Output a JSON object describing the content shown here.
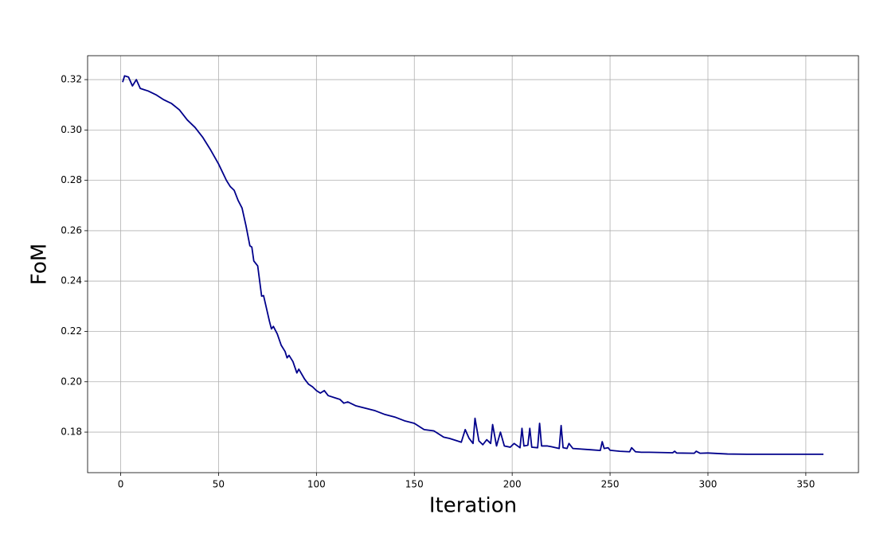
{
  "chart_data": {
    "type": "line",
    "xlabel": "Iteration",
    "ylabel": "FoM",
    "xlim": [
      -16.9,
      376.9
    ],
    "ylim": [
      0.1639,
      0.3295
    ],
    "xticks": [
      0,
      50,
      100,
      150,
      200,
      250,
      300,
      350
    ],
    "yticks": [
      0.18,
      {
        "value": 0.2,
        "label": "0.20"
      },
      0.22,
      0.24,
      0.26,
      0.28,
      {
        "value": 0.3,
        "label": "0.30"
      },
      0.32
    ],
    "grid": true,
    "x": [
      1,
      2,
      4,
      6,
      8,
      10,
      12,
      14,
      18,
      22,
      26,
      30,
      34,
      38,
      42,
      46,
      50,
      54,
      56,
      58,
      60,
      62,
      64,
      66,
      67,
      68,
      70,
      72,
      73,
      76,
      77,
      78,
      80,
      82,
      84,
      85,
      86,
      88,
      90,
      91,
      94,
      96,
      98,
      100,
      102,
      104,
      106,
      110,
      112,
      114,
      116,
      120,
      125,
      130,
      135,
      140,
      145,
      150,
      155,
      160,
      165,
      168,
      172,
      174,
      176,
      178,
      180,
      181,
      183,
      185,
      187,
      189,
      190,
      192,
      194,
      196,
      199,
      201,
      204,
      205,
      206,
      208,
      209,
      210,
      213,
      214,
      215,
      218,
      220,
      224,
      225,
      226,
      228,
      229,
      231,
      240,
      245,
      246,
      247,
      249,
      250,
      255,
      260,
      261,
      263,
      266,
      270,
      282,
      283,
      284,
      293,
      294,
      296,
      300,
      310,
      320,
      359
    ],
    "series": [
      {
        "name": "FoM",
        "color": "#00008b",
        "values": [
          0.319,
          0.3215,
          0.321,
          0.3175,
          0.32,
          0.3165,
          0.316,
          0.3155,
          0.314,
          0.312,
          0.3105,
          0.308,
          0.304,
          0.301,
          0.297,
          0.292,
          0.2865,
          0.28,
          0.2775,
          0.276,
          0.272,
          0.269,
          0.262,
          0.254,
          0.2535,
          0.248,
          0.246,
          0.234,
          0.2342,
          0.224,
          0.221,
          0.222,
          0.219,
          0.2145,
          0.212,
          0.2095,
          0.2105,
          0.208,
          0.2035,
          0.205,
          0.201,
          0.199,
          0.198,
          0.1965,
          0.1955,
          0.1965,
          0.1945,
          0.1935,
          0.193,
          0.1915,
          0.192,
          0.1905,
          0.1895,
          0.1885,
          0.187,
          0.186,
          0.1845,
          0.1835,
          0.181,
          0.1805,
          0.178,
          0.1775,
          0.1765,
          0.176,
          0.181,
          0.1775,
          0.1755,
          0.1855,
          0.1765,
          0.175,
          0.177,
          0.1755,
          0.183,
          0.1745,
          0.18,
          0.1745,
          0.174,
          0.1755,
          0.1738,
          0.1815,
          0.1745,
          0.1748,
          0.1815,
          0.174,
          0.1738,
          0.1835,
          0.1745,
          0.1745,
          0.1742,
          0.1735,
          0.1826,
          0.1738,
          0.1735,
          0.1755,
          0.1735,
          0.173,
          0.1727,
          0.1762,
          0.1735,
          0.1738,
          0.1728,
          0.1724,
          0.1722,
          0.1738,
          0.1722,
          0.172,
          0.172,
          0.1718,
          0.1724,
          0.1717,
          0.1716,
          0.1724,
          0.1716,
          0.1717,
          0.1713,
          0.1712,
          0.1712
        ]
      }
    ]
  }
}
